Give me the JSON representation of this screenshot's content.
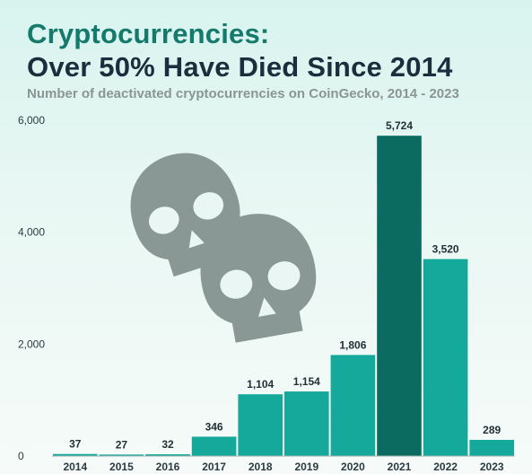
{
  "header": {
    "title_line1": "Cryptocurrencies:",
    "title_line2": "Over 50% Have Died Since 2014",
    "subtitle": "Number of deactivated cryptocurrencies on CoinGecko, 2014 - 2023"
  },
  "colors": {
    "bar": "#15a99c",
    "bar_highlight": "#0b6b60",
    "skull": "#8a9895",
    "grid": "#d6e2df"
  },
  "icons": [
    "skull-icon",
    "skull-icon"
  ],
  "chart_data": {
    "type": "bar",
    "title": "",
    "xlabel": "",
    "ylabel": "",
    "categories": [
      "2014",
      "2015",
      "2016",
      "2017",
      "2018",
      "2019",
      "2020",
      "2021",
      "2022",
      "2023"
    ],
    "values": [
      37,
      27,
      32,
      346,
      1104,
      1154,
      1806,
      5724,
      3520,
      289
    ],
    "value_labels": [
      "37",
      "27",
      "32",
      "346",
      "1,104",
      "1,154",
      "1,806",
      "5,724",
      "3,520",
      "289"
    ],
    "highlight_category": "2021",
    "ylim": [
      0,
      6000
    ],
    "yticks": [
      0,
      2000,
      4000,
      6000
    ],
    "ytick_labels": [
      "0",
      "2,000",
      "4,000",
      "6,000"
    ],
    "grid": false,
    "legend": "none"
  }
}
